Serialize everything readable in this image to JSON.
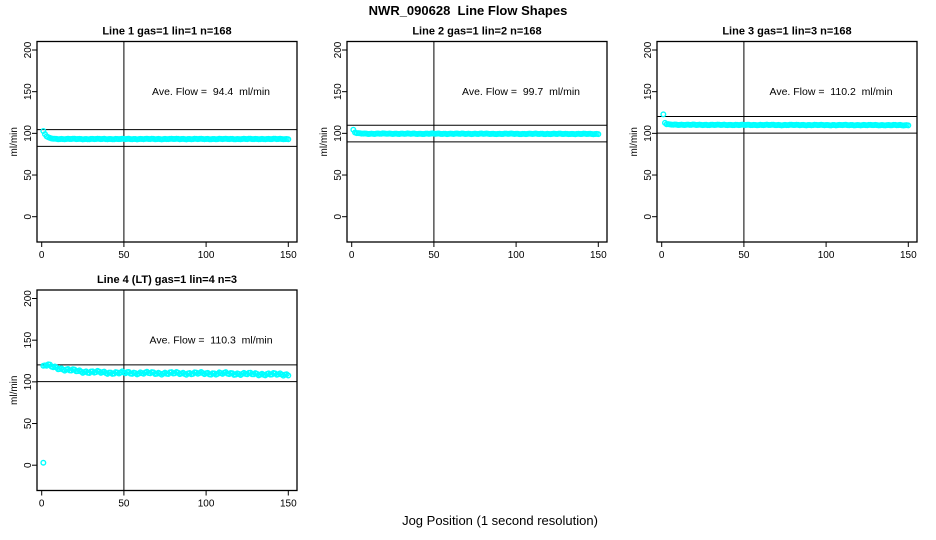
{
  "figure": {
    "title": "NWR_090628  Line Flow Shapes",
    "xlabel": "Jog Position (1 second resolution)",
    "background_color": "#ffffff",
    "point_color": "#00ffff",
    "line_color": "#000000"
  },
  "chart_data": {
    "type": "scatter",
    "title": "NWR_090628  Line Flow Shapes",
    "xlabel": "Jog Position (1 second resolution)",
    "ylabel": "ml/min",
    "x_ticks": [
      0,
      50,
      100,
      150
    ],
    "y_ticks": [
      0,
      50,
      100,
      150,
      200
    ],
    "xlim": [
      -6,
      157
    ],
    "ylim": [
      -30,
      210
    ],
    "grid": false,
    "marker": "open-circle",
    "marker_color": "#00ffff",
    "vline_x": 50,
    "panels": [
      {
        "title": "Line 1 gas=1 lin=1 n=168",
        "annotation": "Ave. Flow =  94.4  ml/min",
        "ave_flow": 94.4,
        "n": 168,
        "ref_lines": [
          104.4,
          84.4
        ],
        "x_start": 1,
        "x_end": 150,
        "profile_knots": [
          [
            1,
            102.5
          ],
          [
            2,
            99
          ],
          [
            3,
            96.5
          ],
          [
            4,
            95
          ],
          [
            5,
            94.2
          ],
          [
            8,
            93.4
          ],
          [
            15,
            93.2
          ],
          [
            150,
            93.2
          ]
        ],
        "noise": 0.25,
        "outliers": []
      },
      {
        "title": "Line 2 gas=1 lin=2 n=168",
        "annotation": "Ave. Flow =  99.7  ml/min",
        "ave_flow": 99.7,
        "n": 168,
        "ref_lines": [
          109.7,
          89.7
        ],
        "x_start": 1,
        "x_end": 150,
        "profile_knots": [
          [
            1,
            104
          ],
          [
            2,
            101
          ],
          [
            3,
            100.3
          ],
          [
            5,
            99.8
          ],
          [
            10,
            99.6
          ],
          [
            150,
            99.3
          ]
        ],
        "noise": 0.25,
        "outliers": []
      },
      {
        "title": "Line 3 gas=1 lin=3 n=168",
        "annotation": "Ave. Flow =  110.2  ml/min",
        "ave_flow": 110.2,
        "n": 168,
        "ref_lines": [
          120.2,
          100.2
        ],
        "x_start": 1,
        "x_end": 150,
        "profile_knots": [
          [
            1,
            122.5
          ],
          [
            2,
            112.5
          ],
          [
            3,
            111
          ],
          [
            5,
            110.5
          ],
          [
            20,
            110.2
          ],
          [
            150,
            109.8
          ]
        ],
        "noise": 0.25,
        "outliers": []
      },
      {
        "title": "Line 4 (LT) gas=1 lin=4 n=3",
        "annotation": "Ave. Flow =  110.3  ml/min",
        "ave_flow": 110.3,
        "n": 3,
        "ref_lines": [
          120.3,
          100.3
        ],
        "x_start": 1,
        "x_end": 150,
        "profile_knots": [
          [
            1,
            118
          ],
          [
            2,
            119.5
          ],
          [
            4,
            119.8
          ],
          [
            8,
            117.5
          ],
          [
            15,
            114.5
          ],
          [
            25,
            112.3
          ],
          [
            40,
            111
          ],
          [
            70,
            110.4
          ],
          [
            110,
            110
          ],
          [
            150,
            108.8
          ]
        ],
        "noise": 1.1,
        "outliers": [
          [
            1,
            3
          ]
        ]
      }
    ]
  }
}
